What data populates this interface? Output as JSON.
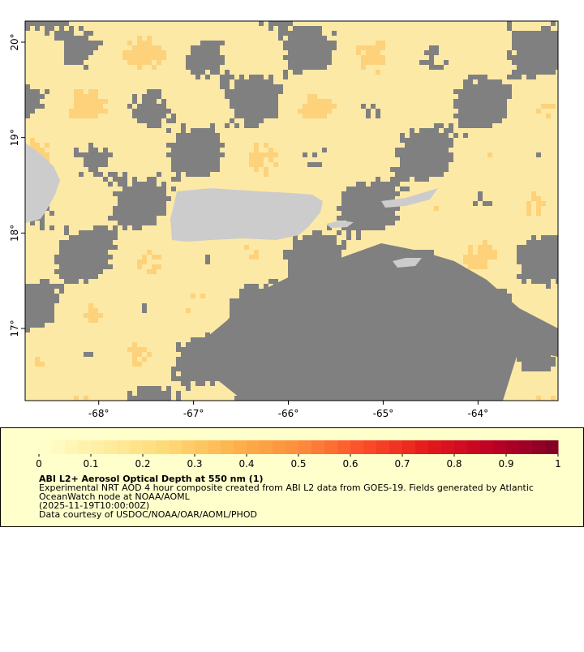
{
  "map": {
    "xlim": [
      -68.776,
      -63.156
    ],
    "ylim": [
      16.244,
      20.221
    ],
    "xticks": [
      {
        "value": -68,
        "label": "-68°"
      },
      {
        "value": -67,
        "label": "-67°"
      },
      {
        "value": -66,
        "label": "-66°"
      },
      {
        "value": -65,
        "label": "-65°"
      },
      {
        "value": -64,
        "label": "-64°"
      }
    ],
    "yticks": [
      {
        "value": 17,
        "label": "17°"
      },
      {
        "value": 18,
        "label": "18°"
      },
      {
        "value": 19,
        "label": "19°"
      },
      {
        "value": 20,
        "label": "20°"
      }
    ]
  },
  "colorbar": {
    "range": [
      0,
      1
    ],
    "ticks": [
      0,
      0.1,
      0.2,
      0.3,
      0.4,
      0.5,
      0.6,
      0.7,
      0.8,
      0.9,
      1
    ],
    "colors": [
      "#ffffcc",
      "#ffeda0",
      "#fed976",
      "#feb24c",
      "#fd8d3c",
      "#fc4e2a",
      "#e31a1c",
      "#bd0026",
      "#800026"
    ]
  },
  "legend": {
    "title": "ABI L2+ Aerosol Optical Depth at 550 nm (1)",
    "lines": [
      "Experimental NRT AOD 4 hour composite created from ABI L2 data from GOES-19. Fields generated by Atlantic",
      "OceanWatch node at NOAA/AOML",
      "(2025-11-19T10:00:00Z)",
      "Data courtesy of USDOC/NOAA/OAR/AOML/PHOD"
    ]
  }
}
